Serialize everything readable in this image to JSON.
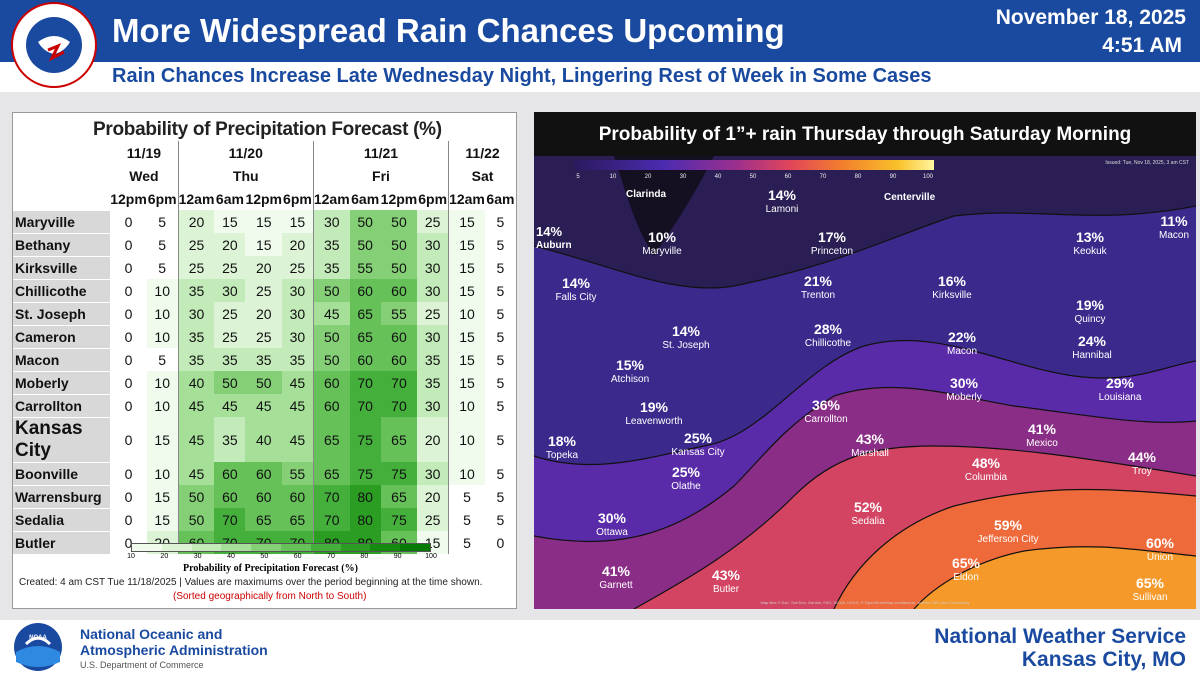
{
  "header": {
    "title": "More Widespread Rain Chances Upcoming",
    "subtitle": "Rain Chances Increase Late Wednesday Night, Lingering Rest of Week in Some Cases",
    "date": "November 18, 2025",
    "time": "4:51 AM",
    "logo_text": "NATIONAL WEATHER SERVICE"
  },
  "table": {
    "title": "Probability of Precipitation Forecast (%)",
    "dates": [
      "11/19",
      "11/20",
      "11/21",
      "11/22"
    ],
    "days": [
      "Wed",
      "Thu",
      "Fri",
      "Sat"
    ],
    "times": [
      "12pm",
      "6pm",
      "12am",
      "6am",
      "12pm",
      "6pm",
      "12am",
      "6am",
      "12pm",
      "6pm",
      "12am",
      "6am"
    ],
    "rows": [
      {
        "loc": "Maryville",
        "v": [
          0,
          5,
          20,
          15,
          15,
          15,
          30,
          50,
          50,
          25,
          15,
          5
        ]
      },
      {
        "loc": "Bethany",
        "v": [
          0,
          5,
          25,
          20,
          15,
          20,
          35,
          50,
          50,
          30,
          15,
          5
        ]
      },
      {
        "loc": "Kirksville",
        "v": [
          0,
          5,
          25,
          25,
          20,
          25,
          35,
          55,
          50,
          30,
          15,
          5
        ]
      },
      {
        "loc": "Chillicothe",
        "v": [
          0,
          10,
          35,
          30,
          25,
          30,
          50,
          60,
          60,
          30,
          15,
          5
        ]
      },
      {
        "loc": "St. Joseph",
        "v": [
          0,
          10,
          30,
          25,
          20,
          30,
          45,
          65,
          55,
          25,
          10,
          5
        ]
      },
      {
        "loc": "Cameron",
        "v": [
          0,
          10,
          35,
          25,
          25,
          30,
          50,
          65,
          60,
          30,
          15,
          5
        ]
      },
      {
        "loc": "Macon",
        "v": [
          0,
          5,
          35,
          35,
          35,
          35,
          50,
          60,
          60,
          35,
          15,
          5
        ]
      },
      {
        "loc": "Moberly",
        "v": [
          0,
          10,
          40,
          50,
          50,
          45,
          60,
          70,
          70,
          35,
          15,
          5
        ]
      },
      {
        "loc": "Carrollton",
        "v": [
          0,
          10,
          45,
          45,
          45,
          45,
          60,
          70,
          70,
          30,
          10,
          5
        ]
      },
      {
        "loc": "Kansas City",
        "v": [
          0,
          15,
          45,
          35,
          40,
          45,
          65,
          75,
          65,
          20,
          10,
          5
        ]
      },
      {
        "loc": "Boonville",
        "v": [
          0,
          10,
          45,
          60,
          60,
          55,
          65,
          75,
          75,
          30,
          10,
          5
        ]
      },
      {
        "loc": "Warrensburg",
        "v": [
          0,
          15,
          50,
          60,
          60,
          60,
          70,
          80,
          65,
          20,
          5,
          5
        ]
      },
      {
        "loc": "Sedalia",
        "v": [
          0,
          15,
          50,
          70,
          65,
          65,
          70,
          80,
          75,
          25,
          5,
          5
        ]
      },
      {
        "loc": "Butler",
        "v": [
          0,
          20,
          60,
          70,
          70,
          70,
          80,
          80,
          60,
          15,
          5,
          0
        ]
      }
    ],
    "scale_ticks": [
      "10",
      "20",
      "30",
      "40",
      "50",
      "60",
      "70",
      "80",
      "90",
      "100"
    ],
    "scale_label": "Probability of Precipitation Forecast (%)",
    "created": "Created: 4 am CST Tue 11/18/2025  |  Values are maximums over the period beginning at the time shown.",
    "sorted": "(Sorted geographically from North to South)"
  },
  "map": {
    "title": "Probability of 1”+ rain Thursday through Saturday Morning",
    "legend_ticks": [
      "5",
      "10",
      "20",
      "30",
      "40",
      "50",
      "60",
      "70",
      "80",
      "90",
      "100"
    ],
    "issued": "Issued: Tue, Nov 18, 2025, 3 am CST",
    "attribution": "Map tiles © Esri, TomTom, Garmin, FAO, NOAA, USGS, © OpenStreetMap contributors, and the GIS User Community",
    "points": [
      {
        "pct": "14%",
        "name": "Lamoni"
      },
      {
        "pct": "10%",
        "name": "Maryville"
      },
      {
        "pct": "17%",
        "name": "Princeton"
      },
      {
        "pct": "14%",
        "name": "Falls City"
      },
      {
        "pct": "21%",
        "name": "Trenton"
      },
      {
        "pct": "16%",
        "name": "Kirksville"
      },
      {
        "pct": "13%",
        "name": "Keokuk"
      },
      {
        "pct": "11%",
        "name": "Macon"
      },
      {
        "pct": "14%",
        "name": "St. Joseph"
      },
      {
        "pct": "28%",
        "name": "Chillicothe"
      },
      {
        "pct": "22%",
        "name": "Macon"
      },
      {
        "pct": "19%",
        "name": "Quincy"
      },
      {
        "pct": "24%",
        "name": "Hannibal"
      },
      {
        "pct": "15%",
        "name": "Atchison"
      },
      {
        "pct": "30%",
        "name": "Moberly"
      },
      {
        "pct": "29%",
        "name": "Louisiana"
      },
      {
        "pct": "36%",
        "name": "Carrollton"
      },
      {
        "pct": "19%",
        "name": "Leavenworth"
      },
      {
        "pct": "25%",
        "name": "Kansas City"
      },
      {
        "pct": "43%",
        "name": "Marshall"
      },
      {
        "pct": "41%",
        "name": "Mexico"
      },
      {
        "pct": "18%",
        "name": "Topeka"
      },
      {
        "pct": "25%",
        "name": "Olathe"
      },
      {
        "pct": "48%",
        "name": "Columbia"
      },
      {
        "pct": "44%",
        "name": "Troy"
      },
      {
        "pct": "52%",
        "name": "Sedalia"
      },
      {
        "pct": "30%",
        "name": "Ottawa"
      },
      {
        "pct": "59%",
        "name": "Jefferson City"
      },
      {
        "pct": "60%",
        "name": "Union"
      },
      {
        "pct": "65%",
        "name": "Eldon"
      },
      {
        "pct": "41%",
        "name": "Garnett"
      },
      {
        "pct": "43%",
        "name": "Butler"
      },
      {
        "pct": "65%",
        "name": "Sullivan"
      }
    ],
    "other_labels": {
      "clarinda": "Clarinda",
      "centerville": "Centerville",
      "auburn": "Auburn",
      "fourteen": "14%"
    }
  },
  "footer": {
    "noaa_line1": "National Oceanic and",
    "noaa_line2": "Atmospheric Administration",
    "noaa_line3": "U.S. Department of Commerce",
    "nws_line1": "National Weather Service",
    "nws_line2": "Kansas City, MO",
    "noaa_badge": "NOAA"
  },
  "colors": {
    "header_blue": "#1a4aa0",
    "scale": [
      "#f0fbee",
      "#dcf3d5",
      "#c3eab9",
      "#a5df98",
      "#85d077",
      "#65c158",
      "#44b03b",
      "#2a9d22",
      "#148a0f",
      "#067a04"
    ]
  }
}
